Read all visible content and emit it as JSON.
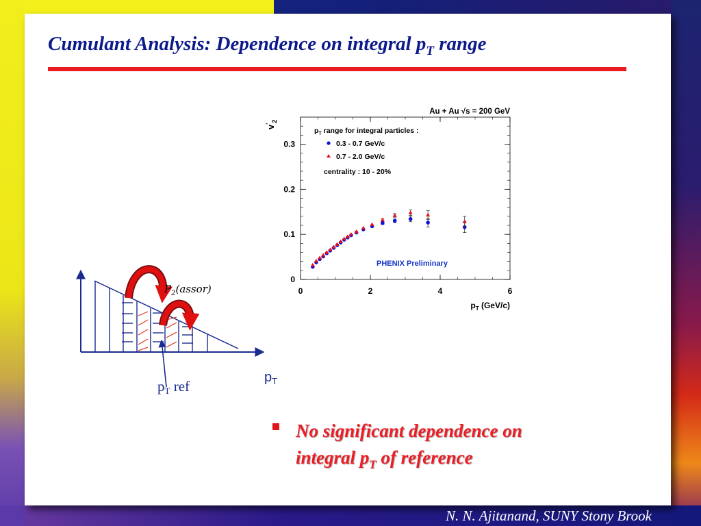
{
  "slide": {
    "title": {
      "main": "Cumulant Analysis: Dependence on integral p",
      "sub": "T",
      "tail": " range"
    },
    "bullet": {
      "line1": "No significant dependence on",
      "line2_main": "integral p",
      "line2_sub": "T",
      "line2_tail": " of reference"
    },
    "footer": "N. N. Ajitanand, SUNY  Stony Brook"
  },
  "sketch": {
    "formula_main": "P",
    "formula_sub": "2",
    "formula_tail": "(assor)",
    "axis_label_main": "p",
    "axis_label_sub": "T",
    "ref_label_main": "p",
    "ref_label_sub": "T",
    "ref_label_tail": " ref"
  },
  "colors": {
    "title": "#0d1a8c",
    "rule": "#e81c20",
    "bullet_text": "#ee1c24",
    "series_low": "#1010d8",
    "series_high": "#e4101a",
    "annotation": "#1030c8",
    "arrow_red": "#e01010"
  },
  "chart_data": {
    "type": "scatter",
    "header": "Au + Au  √s = 200 GeV",
    "ylabel_main": "v",
    "ylabel_sub": "2",
    "ylabel_sup": "'",
    "xlabel_main": "p",
    "xlabel_sub": "T",
    "xlabel_tail": " (GeV/c)",
    "xlim": [
      0,
      6
    ],
    "ylim": [
      0,
      0.36
    ],
    "xticks": [
      0,
      2,
      4,
      6
    ],
    "xtick_labels": [
      "0",
      "2",
      "4",
      "6"
    ],
    "yticks": [
      0,
      0.1,
      0.2,
      0.3
    ],
    "ytick_labels": [
      "0",
      "0.1",
      "0.2",
      "0.3"
    ],
    "legend": {
      "heading_main": "p",
      "heading_sub": "T",
      "heading_tail": " range for integral particles :",
      "centrality": "centrality : 10 - 20%"
    },
    "annotation": "PHENIX Preliminary",
    "series": [
      {
        "name": "0.3 - 0.7 GeV/c",
        "marker": "circle",
        "color": "#1010d8",
        "x": [
          0.35,
          0.45,
          0.55,
          0.65,
          0.75,
          0.85,
          0.95,
          1.05,
          1.15,
          1.25,
          1.35,
          1.45,
          1.6,
          1.8,
          2.05,
          2.35,
          2.7,
          3.15,
          3.65,
          4.7
        ],
        "y": [
          0.028,
          0.038,
          0.045,
          0.051,
          0.058,
          0.064,
          0.07,
          0.076,
          0.082,
          0.088,
          0.093,
          0.098,
          0.104,
          0.111,
          0.118,
          0.125,
          0.13,
          0.134,
          0.126,
          0.116
        ],
        "yerr": [
          0,
          0,
          0,
          0,
          0,
          0,
          0,
          0,
          0,
          0,
          0,
          0,
          0,
          0,
          0,
          0.003,
          0.004,
          0.006,
          0.01,
          0.012
        ]
      },
      {
        "name": "0.7 - 2.0 GeV/c",
        "marker": "triangle",
        "color": "#e4101a",
        "x": [
          0.35,
          0.45,
          0.55,
          0.65,
          0.75,
          0.85,
          0.95,
          1.05,
          1.15,
          1.25,
          1.35,
          1.45,
          1.6,
          1.8,
          2.05,
          2.35,
          2.7,
          3.15,
          3.65,
          4.7
        ],
        "y": [
          0.032,
          0.041,
          0.048,
          0.054,
          0.06,
          0.066,
          0.072,
          0.078,
          0.084,
          0.09,
          0.095,
          0.1,
          0.106,
          0.114,
          0.122,
          0.132,
          0.142,
          0.148,
          0.143,
          0.128
        ],
        "yerr": [
          0,
          0,
          0,
          0,
          0,
          0,
          0,
          0,
          0,
          0,
          0,
          0,
          0,
          0,
          0,
          0.003,
          0.004,
          0.006,
          0.01,
          0.012
        ]
      }
    ]
  }
}
